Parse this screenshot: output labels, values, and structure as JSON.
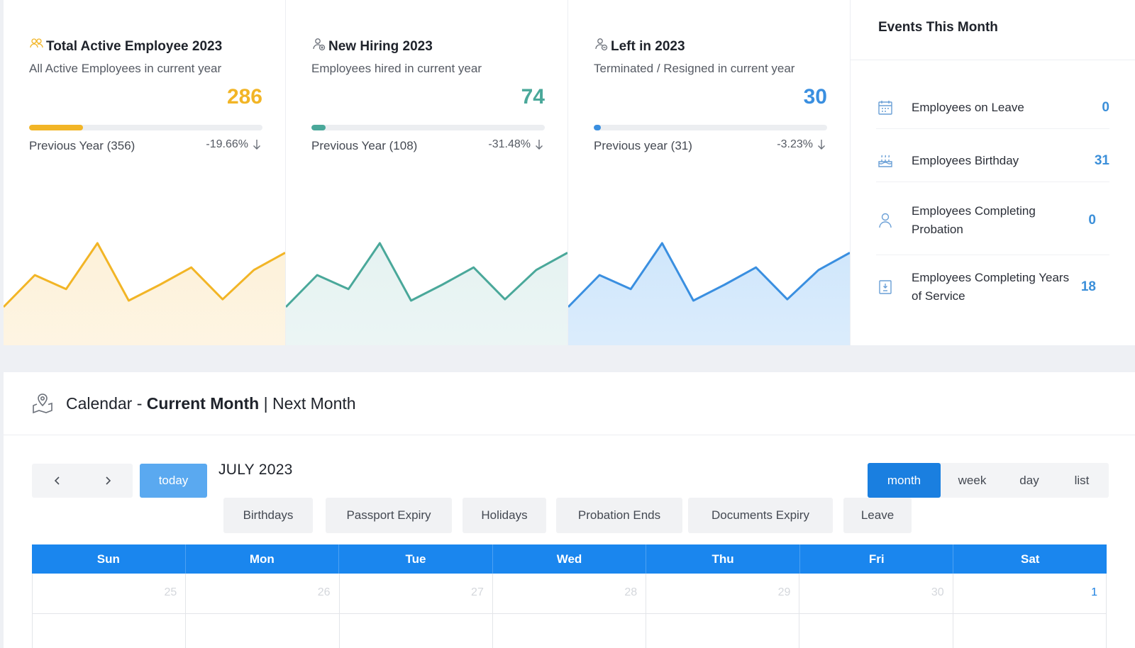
{
  "stats": [
    {
      "title": "Total Active Employee 2023",
      "subtitle": "All Active Employees in current year",
      "value": "286",
      "progress": 0.23,
      "previous": "Previous Year (356)",
      "change": "-19.66%",
      "color": "#f2b526",
      "fill": "#fdf1d9",
      "icon": "users-icon",
      "spark": [
        60,
        110,
        88,
        160,
        70,
        95,
        122,
        72,
        118,
        145
      ]
    },
    {
      "title": "New Hiring 2023",
      "subtitle": "Employees hired in current year",
      "value": "74",
      "progress": 0.06,
      "previous": "Previous Year (108)",
      "change": "-31.48%",
      "color": "#4aa89a",
      "fill": "#e5f2f1",
      "icon": "user-plus-icon",
      "spark": [
        60,
        110,
        88,
        160,
        70,
        95,
        122,
        72,
        118,
        145
      ]
    },
    {
      "title": "Left in 2023",
      "subtitle": "Terminated / Resigned in current year",
      "value": "30",
      "progress": 0.03,
      "previous": "Previous year (31)",
      "change": "-3.23%",
      "color": "#3a8fe0",
      "fill": "#cfe6fb",
      "icon": "user-minus-icon",
      "spark": [
        60,
        110,
        88,
        160,
        70,
        95,
        122,
        72,
        118,
        145
      ]
    }
  ],
  "events": {
    "title": "Events This Month",
    "items": [
      {
        "label": "Employees on Leave",
        "count": "0",
        "icon": "calendar-icon"
      },
      {
        "label": "Employees Birthday",
        "count": "31",
        "icon": "cake-icon"
      },
      {
        "label": "Employees Completing Probation",
        "count": "0",
        "icon": "user-icon"
      },
      {
        "label": "Employees Completing Years of Service",
        "count": "18",
        "icon": "badge-icon"
      }
    ]
  },
  "calendar": {
    "title_prefix": "Calendar -",
    "current": "Current Month",
    "separator": "|",
    "next": "Next Month",
    "today_label": "today",
    "month_label": "JULY 2023",
    "views": [
      "month",
      "week",
      "day",
      "list"
    ],
    "active_view": "month",
    "filters": [
      "Birthdays",
      "Passport Expiry",
      "Holidays",
      "Probation Ends",
      "Documents Expiry",
      "Leave"
    ],
    "days_of_week": [
      "Sun",
      "Mon",
      "Tue",
      "Wed",
      "Thu",
      "Fri",
      "Sat"
    ],
    "first_week": [
      "25",
      "26",
      "27",
      "28",
      "29",
      "30",
      "1"
    ],
    "accent": "#1a86ee"
  }
}
